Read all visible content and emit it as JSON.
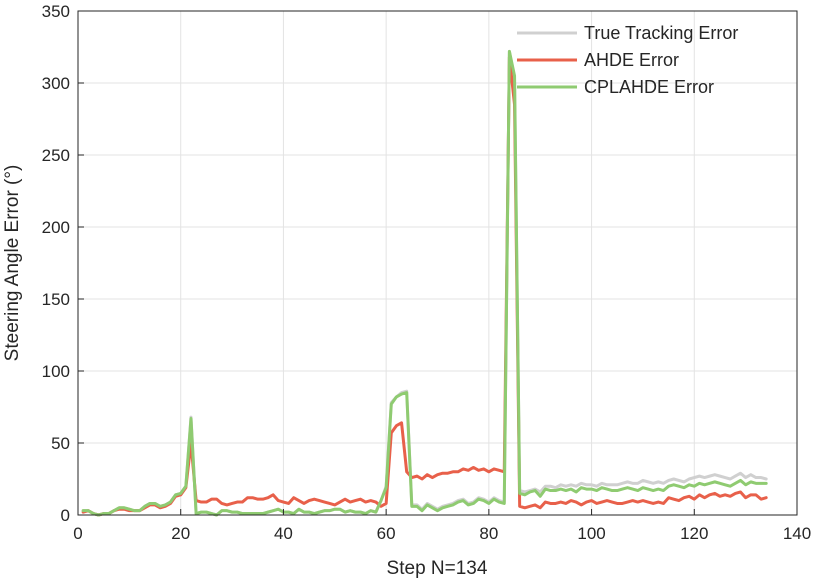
{
  "chart_data": {
    "type": "line",
    "title": "",
    "xlabel": "Step N=134",
    "ylabel": "Steering Angle Error (°)",
    "xlim": [
      0,
      140
    ],
    "ylim": [
      0,
      350
    ],
    "xticks": [
      0,
      20,
      40,
      60,
      80,
      100,
      120,
      140
    ],
    "yticks": [
      0,
      50,
      100,
      150,
      200,
      250,
      300,
      350
    ],
    "grid": true,
    "legend_position": "top-right",
    "series": [
      {
        "name": "True Tracking Error",
        "color": "#d0d0d0",
        "x": [
          1,
          2,
          3,
          4,
          5,
          6,
          7,
          8,
          9,
          10,
          11,
          12,
          13,
          14,
          15,
          16,
          17,
          18,
          19,
          20,
          21,
          22,
          23,
          24,
          25,
          26,
          27,
          28,
          29,
          30,
          31,
          32,
          33,
          34,
          35,
          36,
          37,
          38,
          39,
          40,
          41,
          42,
          43,
          44,
          45,
          46,
          47,
          48,
          49,
          50,
          51,
          52,
          53,
          54,
          55,
          56,
          57,
          58,
          59,
          60,
          61,
          62,
          63,
          64,
          65,
          66,
          67,
          68,
          69,
          70,
          71,
          72,
          73,
          74,
          75,
          76,
          77,
          78,
          79,
          80,
          81,
          82,
          83,
          84,
          85,
          86,
          87,
          88,
          89,
          90,
          91,
          92,
          93,
          94,
          95,
          96,
          97,
          98,
          99,
          100,
          101,
          102,
          103,
          104,
          105,
          106,
          107,
          108,
          109,
          110,
          111,
          112,
          113,
          114,
          115,
          116,
          117,
          118,
          119,
          120,
          121,
          122,
          123,
          124,
          125,
          126,
          127,
          128,
          129,
          130,
          131,
          132,
          133,
          134
        ],
        "y": [
          3,
          3,
          1,
          0,
          1,
          1,
          3,
          5,
          5,
          4,
          3,
          3,
          6,
          8,
          8,
          6,
          7,
          9,
          14,
          15,
          20,
          68,
          1,
          2,
          2,
          1,
          0,
          3,
          3,
          2,
          2,
          1,
          1,
          1,
          1,
          1,
          2,
          3,
          4,
          2,
          2,
          1,
          4,
          2,
          2,
          1,
          2,
          3,
          3,
          4,
          4,
          2,
          3,
          2,
          2,
          1,
          3,
          2,
          10,
          20,
          78,
          82,
          85,
          86,
          7,
          7,
          4,
          8,
          6,
          4,
          6,
          7,
          8,
          10,
          11,
          8,
          9,
          12,
          11,
          9,
          12,
          10,
          9,
          322,
          300,
          17,
          16,
          17,
          18,
          16,
          20,
          20,
          19,
          21,
          20,
          21,
          20,
          22,
          21,
          21,
          20,
          22,
          21,
          21,
          21,
          22,
          23,
          22,
          22,
          24,
          23,
          22,
          23,
          22,
          24,
          25,
          24,
          23,
          25,
          26,
          27,
          26,
          27,
          28,
          27,
          26,
          25,
          27,
          29,
          26,
          28,
          26,
          26,
          25
        ]
      },
      {
        "name": "AHDE Error",
        "color": "#e8604a",
        "x": [
          1,
          2,
          3,
          4,
          5,
          6,
          7,
          8,
          9,
          10,
          11,
          12,
          13,
          14,
          15,
          16,
          17,
          18,
          19,
          20,
          21,
          22,
          23,
          24,
          25,
          26,
          27,
          28,
          29,
          30,
          31,
          32,
          33,
          34,
          35,
          36,
          37,
          38,
          39,
          40,
          41,
          42,
          43,
          44,
          45,
          46,
          47,
          48,
          49,
          50,
          51,
          52,
          53,
          54,
          55,
          56,
          57,
          58,
          59,
          60,
          61,
          62,
          63,
          64,
          65,
          66,
          67,
          68,
          69,
          70,
          71,
          72,
          73,
          74,
          75,
          76,
          77,
          78,
          79,
          80,
          81,
          82,
          83,
          84,
          85,
          86,
          87,
          88,
          89,
          90,
          91,
          92,
          93,
          94,
          95,
          96,
          97,
          98,
          99,
          100,
          101,
          102,
          103,
          104,
          105,
          106,
          107,
          108,
          109,
          110,
          111,
          112,
          113,
          114,
          115,
          116,
          117,
          118,
          119,
          120,
          121,
          122,
          123,
          124,
          125,
          126,
          127,
          128,
          129,
          130,
          131,
          132,
          133,
          134
        ],
        "y": [
          2,
          3,
          1,
          0,
          1,
          1,
          3,
          4,
          4,
          3,
          3,
          3,
          5,
          7,
          7,
          5,
          6,
          8,
          13,
          14,
          19,
          50,
          10,
          9,
          9,
          11,
          11,
          8,
          7,
          8,
          9,
          9,
          12,
          12,
          11,
          11,
          12,
          14,
          10,
          9,
          8,
          12,
          10,
          8,
          10,
          11,
          10,
          9,
          8,
          7,
          9,
          11,
          9,
          10,
          11,
          9,
          10,
          9,
          6,
          8,
          57,
          62,
          64,
          30,
          26,
          27,
          25,
          28,
          26,
          28,
          29,
          29,
          30,
          30,
          32,
          31,
          33,
          31,
          32,
          30,
          32,
          31,
          30,
          318,
          285,
          6,
          5,
          6,
          7,
          5,
          9,
          8,
          8,
          9,
          8,
          10,
          9,
          7,
          9,
          10,
          8,
          9,
          10,
          9,
          8,
          8,
          9,
          10,
          9,
          10,
          9,
          8,
          9,
          8,
          12,
          11,
          10,
          12,
          13,
          11,
          14,
          12,
          14,
          15,
          13,
          14,
          13,
          15,
          16,
          12,
          14,
          14,
          11,
          12
        ]
      },
      {
        "name": "CPLAHDE Error",
        "color": "#8fcb71",
        "x": [
          1,
          2,
          3,
          4,
          5,
          6,
          7,
          8,
          9,
          10,
          11,
          12,
          13,
          14,
          15,
          16,
          17,
          18,
          19,
          20,
          21,
          22,
          23,
          24,
          25,
          26,
          27,
          28,
          29,
          30,
          31,
          32,
          33,
          34,
          35,
          36,
          37,
          38,
          39,
          40,
          41,
          42,
          43,
          44,
          45,
          46,
          47,
          48,
          49,
          50,
          51,
          52,
          53,
          54,
          55,
          56,
          57,
          58,
          59,
          60,
          61,
          62,
          63,
          64,
          65,
          66,
          67,
          68,
          69,
          70,
          71,
          72,
          73,
          74,
          75,
          76,
          77,
          78,
          79,
          80,
          81,
          82,
          83,
          84,
          85,
          86,
          87,
          88,
          89,
          90,
          91,
          92,
          93,
          94,
          95,
          96,
          97,
          98,
          99,
          100,
          101,
          102,
          103,
          104,
          105,
          106,
          107,
          108,
          109,
          110,
          111,
          112,
          113,
          114,
          115,
          116,
          117,
          118,
          119,
          120,
          121,
          122,
          123,
          124,
          125,
          126,
          127,
          128,
          129,
          130,
          131,
          132,
          133,
          134
        ],
        "y": [
          3,
          3,
          1,
          0,
          1,
          1,
          3,
          5,
          5,
          4,
          3,
          3,
          6,
          8,
          8,
          6,
          7,
          9,
          14,
          15,
          20,
          67,
          1,
          2,
          2,
          1,
          0,
          3,
          3,
          2,
          2,
          1,
          1,
          1,
          1,
          1,
          2,
          3,
          4,
          2,
          2,
          1,
          4,
          2,
          2,
          1,
          2,
          3,
          3,
          4,
          4,
          2,
          3,
          2,
          2,
          1,
          3,
          2,
          10,
          19,
          77,
          82,
          84,
          85,
          6,
          6,
          3,
          7,
          5,
          3,
          5,
          6,
          7,
          9,
          10,
          7,
          8,
          11,
          10,
          8,
          11,
          9,
          8,
          322,
          305,
          15,
          14,
          16,
          17,
          13,
          18,
          17,
          17,
          18,
          17,
          18,
          16,
          19,
          18,
          18,
          17,
          19,
          18,
          17,
          17,
          18,
          19,
          18,
          17,
          19,
          18,
          17,
          18,
          17,
          20,
          21,
          20,
          19,
          21,
          20,
          22,
          21,
          22,
          23,
          22,
          21,
          20,
          22,
          24,
          21,
          23,
          22,
          22,
          22
        ]
      }
    ]
  }
}
